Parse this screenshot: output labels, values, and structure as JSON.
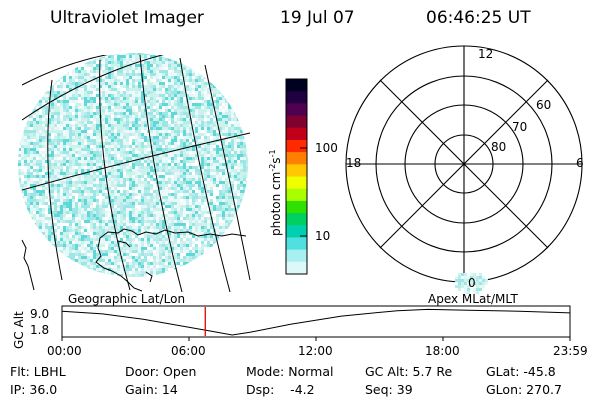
{
  "header": {
    "title": "Ultraviolet Imager",
    "date": "19 Jul 07",
    "time": "06:46:25 UT"
  },
  "colorbar": {
    "label_main": "photon cm",
    "label_sup1": "-2",
    "label_mid": "s",
    "label_sup2": "-1",
    "tick_100": "100",
    "tick_10": "10",
    "colors": [
      "#000020",
      "#200040",
      "#500050",
      "#800030",
      "#c0001a",
      "#ff2a00",
      "#ff8000",
      "#ffc800",
      "#f0ff00",
      "#a8ff00",
      "#30e000",
      "#00d060",
      "#00d0b0",
      "#50e0e0",
      "#a8f0f0",
      "#dcf8f8"
    ]
  },
  "polar": {
    "mlt_12": "12",
    "mlt_18": "18",
    "mlt_6": "6",
    "mlt_0": "0",
    "lat_60": "60",
    "lat_70": "70",
    "lat_80": "80"
  },
  "strip": {
    "left_label": "Geographic Lat/Lon",
    "right_label": "Apex MLat/MLT",
    "ylabel": "GC Alt",
    "ytick_top": "9.0",
    "ytick_bottom": "1.8",
    "xticks": [
      "00:00",
      "06:00",
      "12:00",
      "18:00",
      "23:59"
    ],
    "current_time_fraction": 0.282
  },
  "footer": {
    "row1": {
      "filter": "Flt: LBHL",
      "door": "Door: Open",
      "mode": "Mode: Normal",
      "gc_alt": "GC Alt: 5.7 Re",
      "glat": "GLat: -45.8"
    },
    "row2": {
      "ip": "IP: 36.0",
      "gain": "Gain: 14",
      "dsp": "Dsp:    -4.2",
      "seq": "Seq: 39",
      "glon": "GLon: 270.7"
    }
  }
}
